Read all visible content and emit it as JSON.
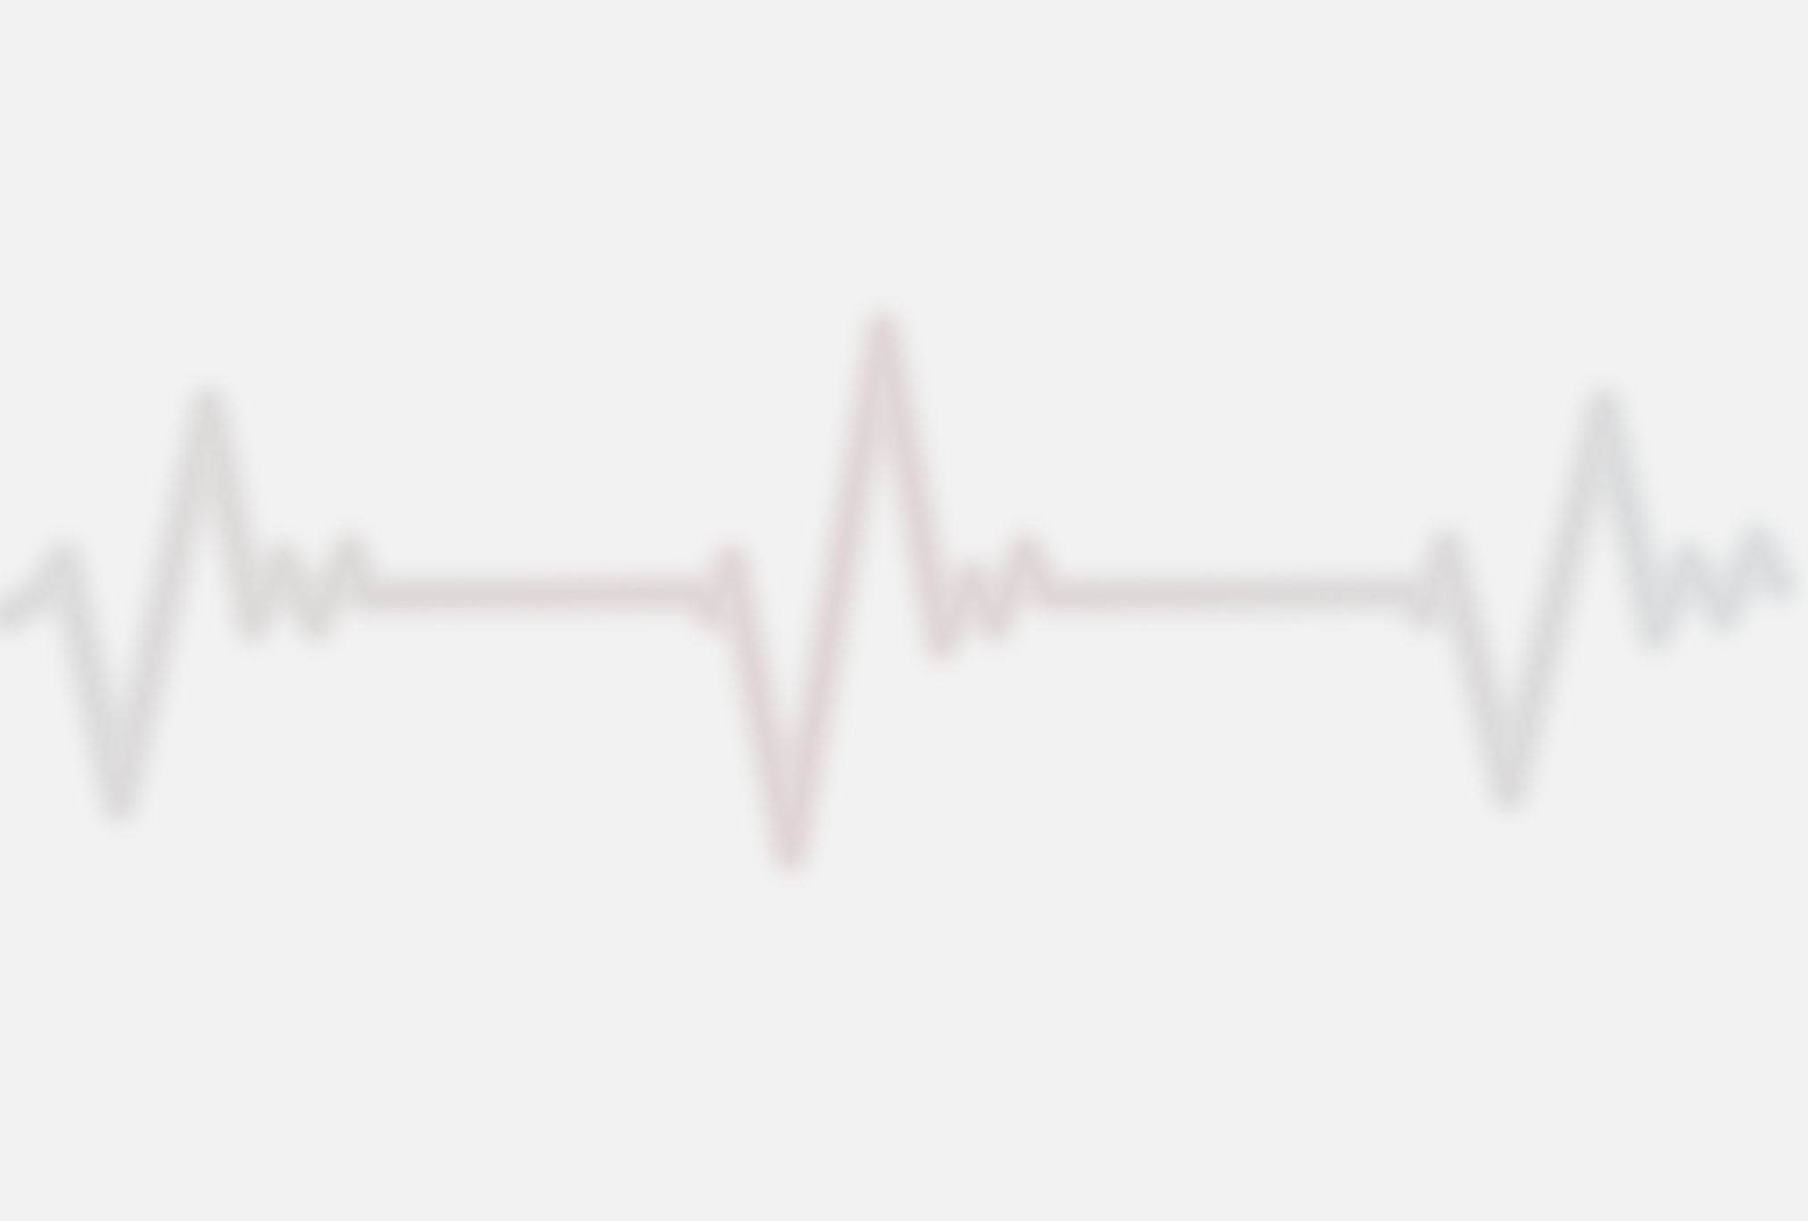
{
  "scene": {
    "subject": "heartbeat-waveform",
    "style": "soft-blurred-line",
    "background_color": "#f2f2f2",
    "colors": {
      "glow": "#e1e1e1",
      "glow_left": "#dedede",
      "glow_center": "#e3dada",
      "glow_right": "#dde0e1",
      "core_left": "#d9d9d9",
      "core_center": "#dccfcf",
      "core_right": "#d7dadc"
    }
  }
}
